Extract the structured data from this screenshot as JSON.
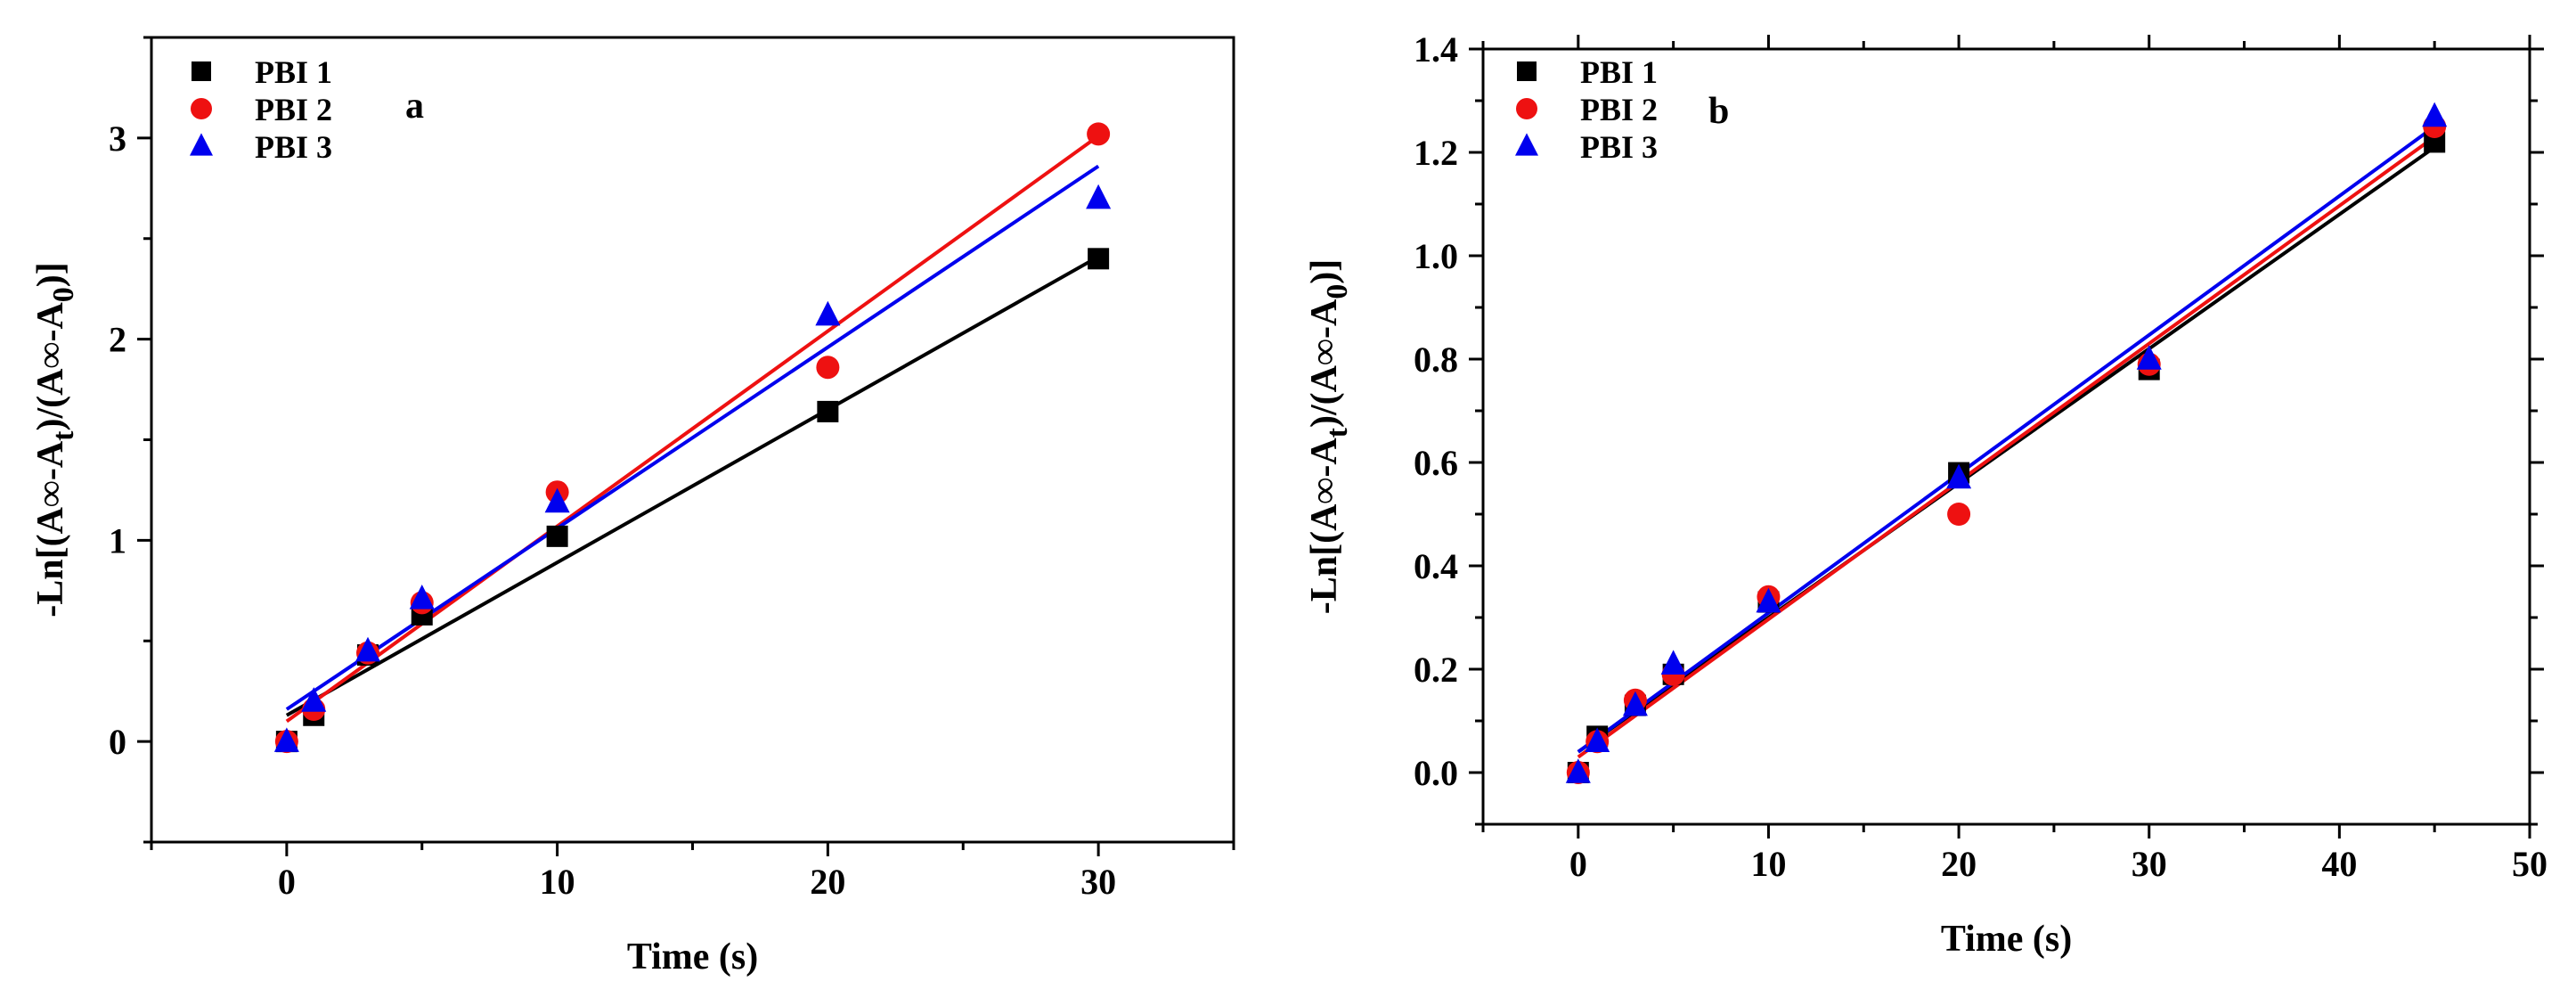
{
  "figure": {
    "panels": 2
  },
  "chart_data": [
    {
      "panel_label": "a",
      "type": "scatter",
      "xlabel": "Time (s)",
      "ylabel": {
        "pre": "-Ln[(A",
        "inf": "∞",
        "mid": "-A",
        "sub_t": "t",
        "mid2": ")/(A",
        "inf2": "∞",
        "mid3": "-A",
        "sub_0": "0",
        "post": ")]"
      },
      "xlim": [
        -5,
        35
      ],
      "ylim": [
        -0.5,
        3.5
      ],
      "xticks": [
        0,
        10,
        20,
        30
      ],
      "xtick_labels": [
        "0",
        "10",
        "20",
        "30"
      ],
      "yticks": [
        0,
        1,
        2,
        3
      ],
      "ytick_labels": [
        "0",
        "1",
        "2",
        "3"
      ],
      "x_minor": 5,
      "y_minor": 0.5,
      "legend_position": "top-left",
      "series": [
        {
          "name": "PBI 1",
          "marker": "square",
          "color": "#000000",
          "x": [
            0,
            1,
            3,
            5,
            10,
            20,
            30
          ],
          "y": [
            0,
            0.13,
            0.43,
            0.63,
            1.02,
            1.64,
            2.4
          ],
          "fit": {
            "x": [
              0,
              30
            ],
            "y": [
              0.13,
              2.41
            ]
          }
        },
        {
          "name": "PBI 2",
          "marker": "circle",
          "color": "#ee1111",
          "x": [
            0,
            1,
            3,
            5,
            10,
            20,
            30
          ],
          "y": [
            0,
            0.16,
            0.44,
            0.69,
            1.24,
            1.86,
            3.02
          ],
          "fit": {
            "x": [
              0,
              30
            ],
            "y": [
              0.1,
              3.01
            ]
          }
        },
        {
          "name": "PBI 3",
          "marker": "triangle",
          "color": "#0000ee",
          "x": [
            0,
            1,
            3,
            5,
            10,
            20,
            30
          ],
          "y": [
            0,
            0.2,
            0.45,
            0.71,
            1.19,
            2.12,
            2.7
          ],
          "fit": {
            "x": [
              0,
              30
            ],
            "y": [
              0.16,
              2.86
            ]
          }
        }
      ]
    },
    {
      "panel_label": "b",
      "type": "scatter",
      "xlabel": "Time (s)",
      "ylabel": {
        "pre": "-Ln[(A",
        "inf": "∞",
        "mid": "-A",
        "sub_t": "t",
        "mid2": ")/(A",
        "inf2": "∞",
        "mid3": "-A",
        "sub_0": "0",
        "post": ")]"
      },
      "xlim": [
        -5,
        50
      ],
      "ylim": [
        -0.1,
        1.4
      ],
      "xticks": [
        0,
        10,
        20,
        30,
        40,
        50
      ],
      "xtick_labels": [
        "0",
        "10",
        "20",
        "30",
        "40",
        "50"
      ],
      "yticks": [
        0,
        0.2,
        0.4,
        0.6,
        0.8,
        1.0,
        1.2,
        1.4
      ],
      "ytick_labels": [
        "0.0",
        "0.2",
        "0.4",
        "0.6",
        "0.8",
        "1.0",
        "1.2",
        "1.4"
      ],
      "x_minor": 5,
      "y_minor": 0.1,
      "legend_position": "top-left",
      "series": [
        {
          "name": "PBI 1",
          "marker": "square",
          "color": "#000000",
          "x": [
            0,
            1,
            3,
            5,
            10,
            20,
            30,
            45
          ],
          "y": [
            0,
            0.07,
            0.13,
            0.19,
            0.33,
            0.58,
            0.78,
            1.22
          ],
          "fit": {
            "x": [
              0,
              45
            ],
            "y": [
              0.04,
              1.21
            ]
          }
        },
        {
          "name": "PBI 2",
          "marker": "circle",
          "color": "#ee1111",
          "x": [
            0,
            1,
            3,
            5,
            10,
            20,
            30,
            45
          ],
          "y": [
            0,
            0.06,
            0.14,
            0.19,
            0.34,
            0.5,
            0.79,
            1.25
          ],
          "fit": {
            "x": [
              0,
              45
            ],
            "y": [
              0.03,
              1.23
            ]
          }
        },
        {
          "name": "PBI 3",
          "marker": "triangle",
          "color": "#0000ee",
          "x": [
            0,
            1,
            3,
            5,
            10,
            20,
            30,
            45
          ],
          "y": [
            0,
            0.06,
            0.13,
            0.21,
            0.33,
            0.57,
            0.8,
            1.27
          ],
          "fit": {
            "x": [
              0,
              45
            ],
            "y": [
              0.04,
              1.25
            ]
          }
        }
      ]
    }
  ]
}
